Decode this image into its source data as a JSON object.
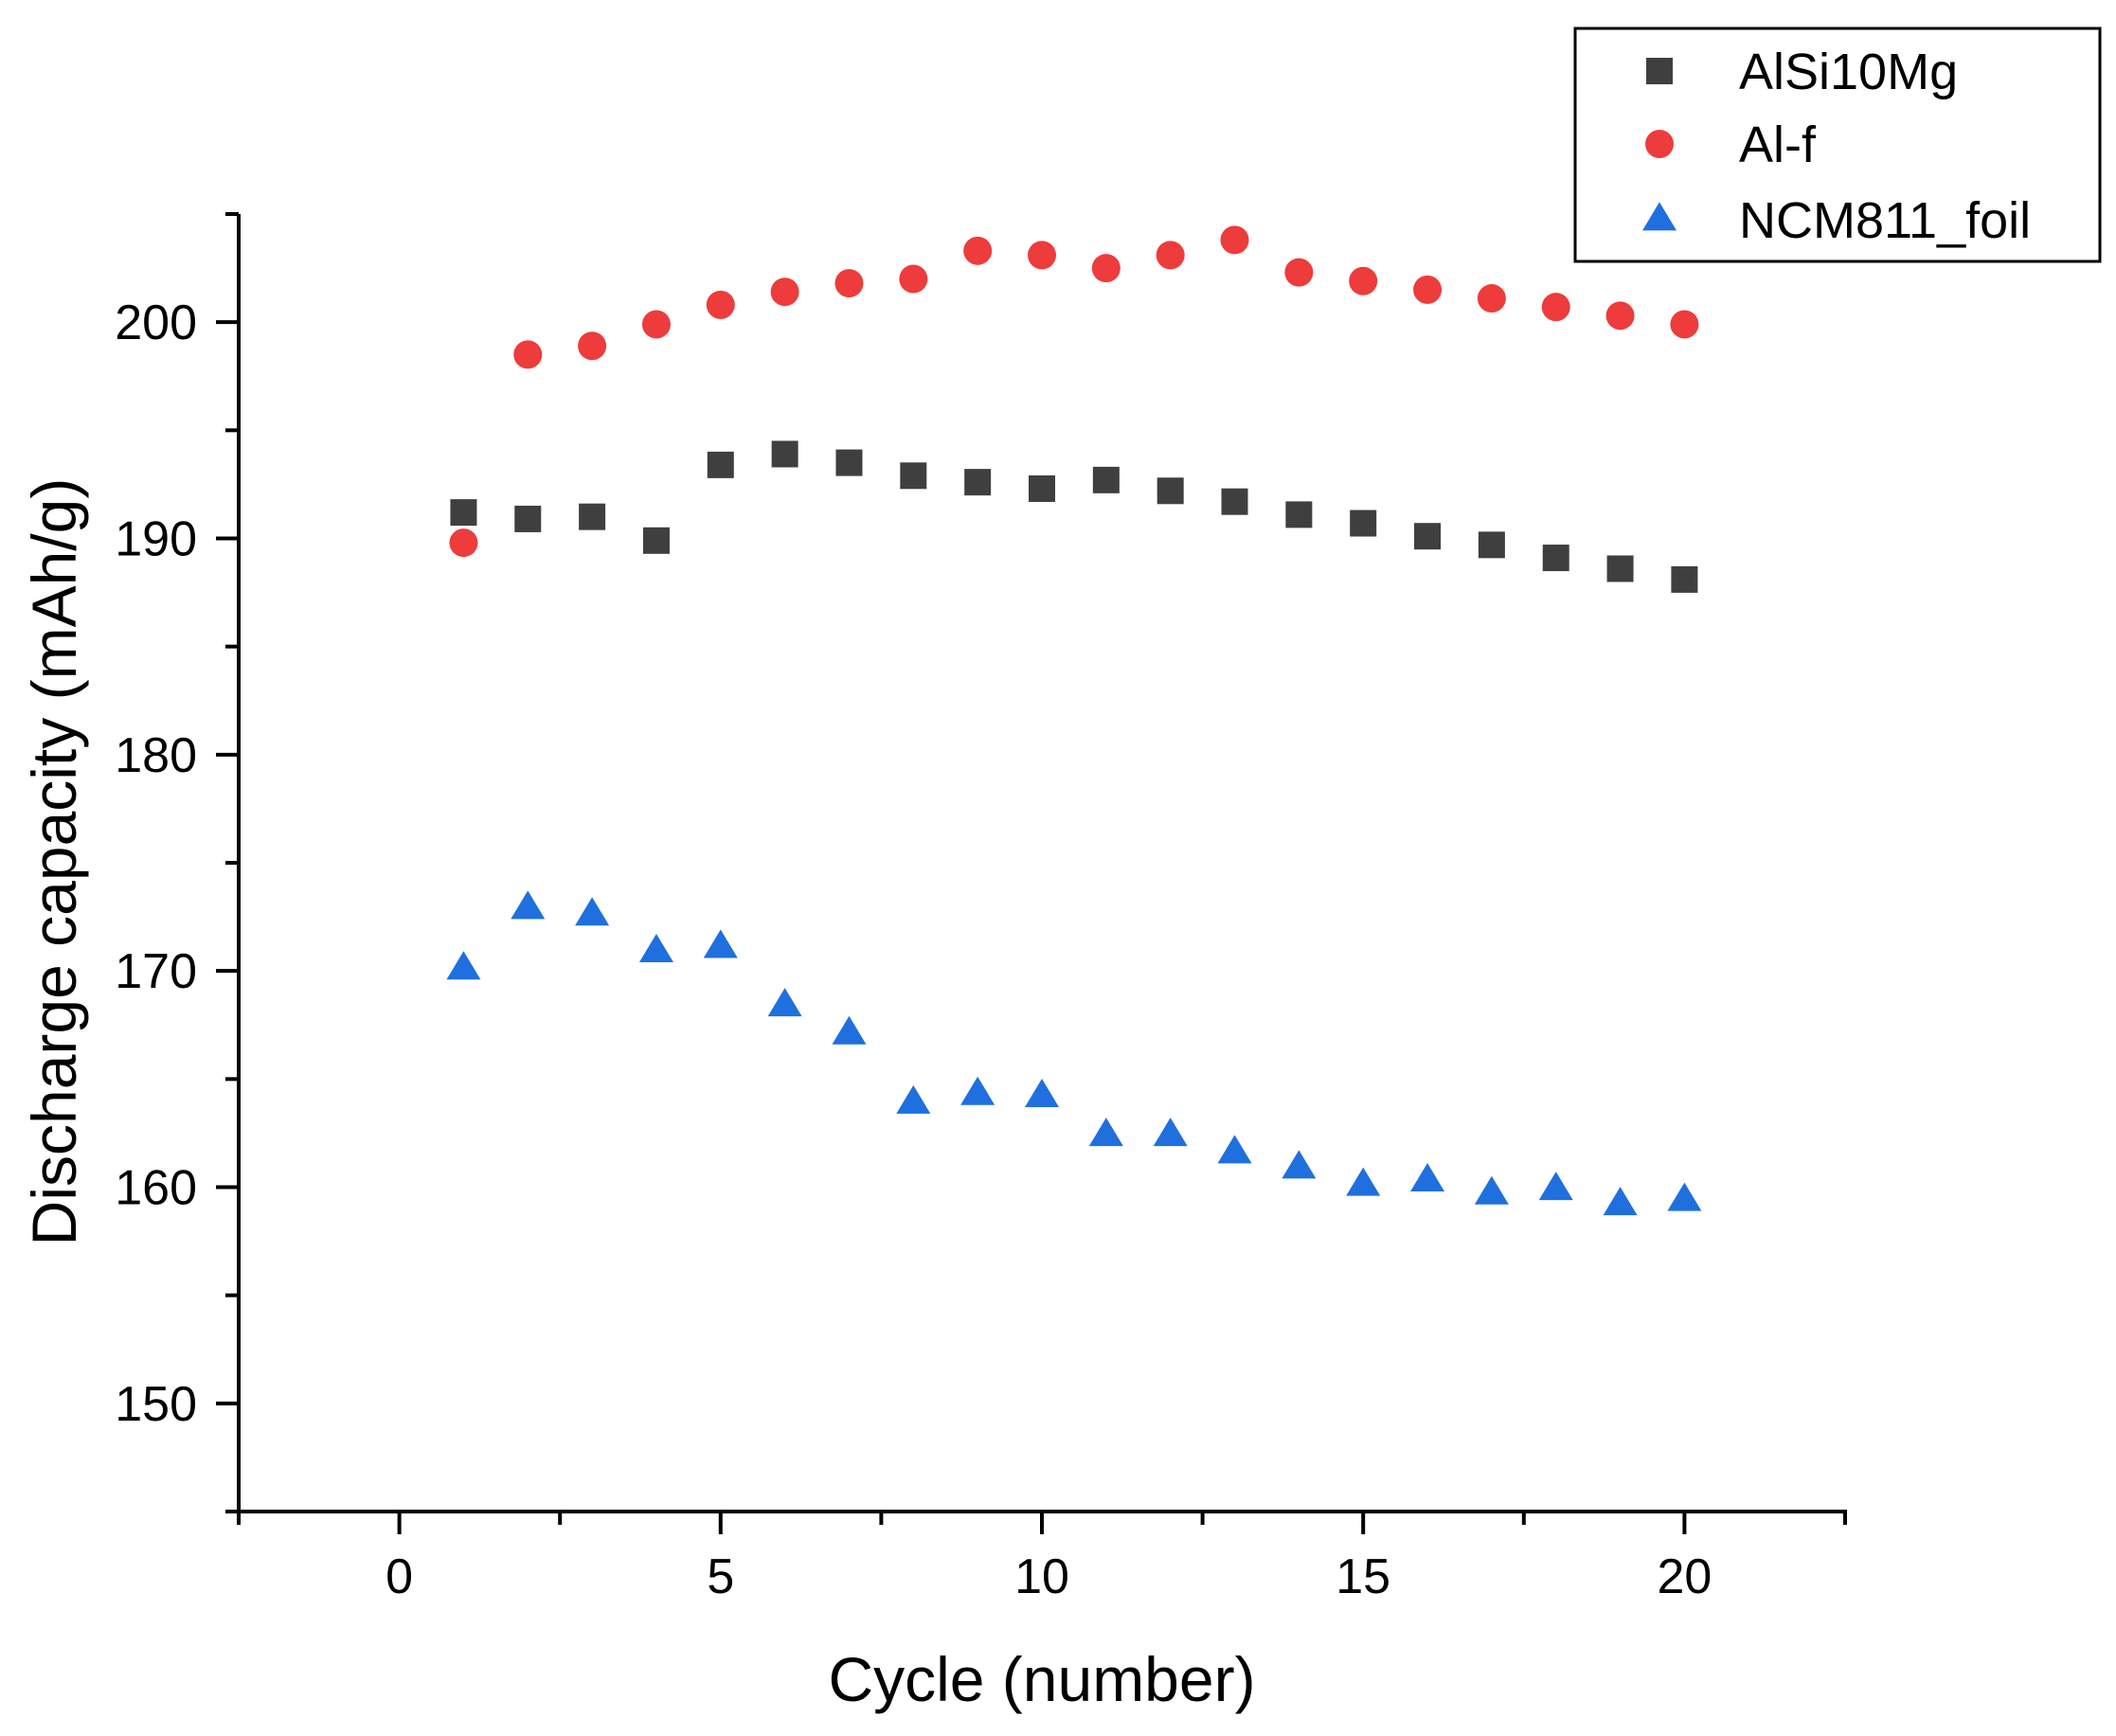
{
  "chart_data": {
    "type": "scatter",
    "title": "",
    "xlabel": "Cycle (number)",
    "ylabel": "Discharge capacity (mAh/g)",
    "xlim": [
      -2.5,
      22.5
    ],
    "ylim": [
      145,
      205
    ],
    "x_ticks": [
      0,
      5,
      10,
      15,
      20
    ],
    "x_tick_labels": [
      "0",
      "5",
      "10",
      "15",
      "20"
    ],
    "y_ticks": [
      150,
      160,
      170,
      180,
      190,
      200
    ],
    "y_tick_labels": [
      "150",
      "160",
      "170",
      "180",
      "190",
      "200"
    ],
    "grid": false,
    "legend_position": "top-right",
    "x": [
      1,
      2,
      3,
      4,
      5,
      6,
      7,
      8,
      9,
      10,
      11,
      12,
      13,
      14,
      15,
      16,
      17,
      18,
      19,
      20
    ],
    "series": [
      {
        "name": "AlSi10Mg",
        "marker": "square",
        "color": "#3f3f3f",
        "values": [
          191.2,
          190.9,
          191.0,
          189.9,
          193.4,
          193.9,
          193.5,
          192.9,
          192.6,
          192.3,
          192.7,
          192.2,
          191.7,
          191.1,
          190.7,
          190.1,
          189.7,
          189.1,
          188.6,
          188.1
        ]
      },
      {
        "name": "Al-f",
        "marker": "circle",
        "color": "#ee3b3b",
        "values": [
          189.8,
          198.5,
          198.9,
          199.9,
          200.8,
          201.4,
          201.8,
          202.0,
          203.3,
          203.1,
          202.5,
          203.1,
          203.8,
          202.3,
          201.9,
          201.5,
          201.1,
          200.7,
          200.3,
          199.9
        ]
      },
      {
        "name": "NCM811_foil",
        "marker": "triangle",
        "color": "#1f6fdf",
        "values": [
          170.1,
          172.9,
          172.6,
          170.9,
          171.1,
          168.4,
          167.1,
          163.9,
          164.3,
          164.2,
          162.4,
          162.4,
          161.6,
          160.9,
          160.1,
          160.3,
          159.7,
          159.9,
          159.2,
          159.4
        ]
      }
    ]
  }
}
